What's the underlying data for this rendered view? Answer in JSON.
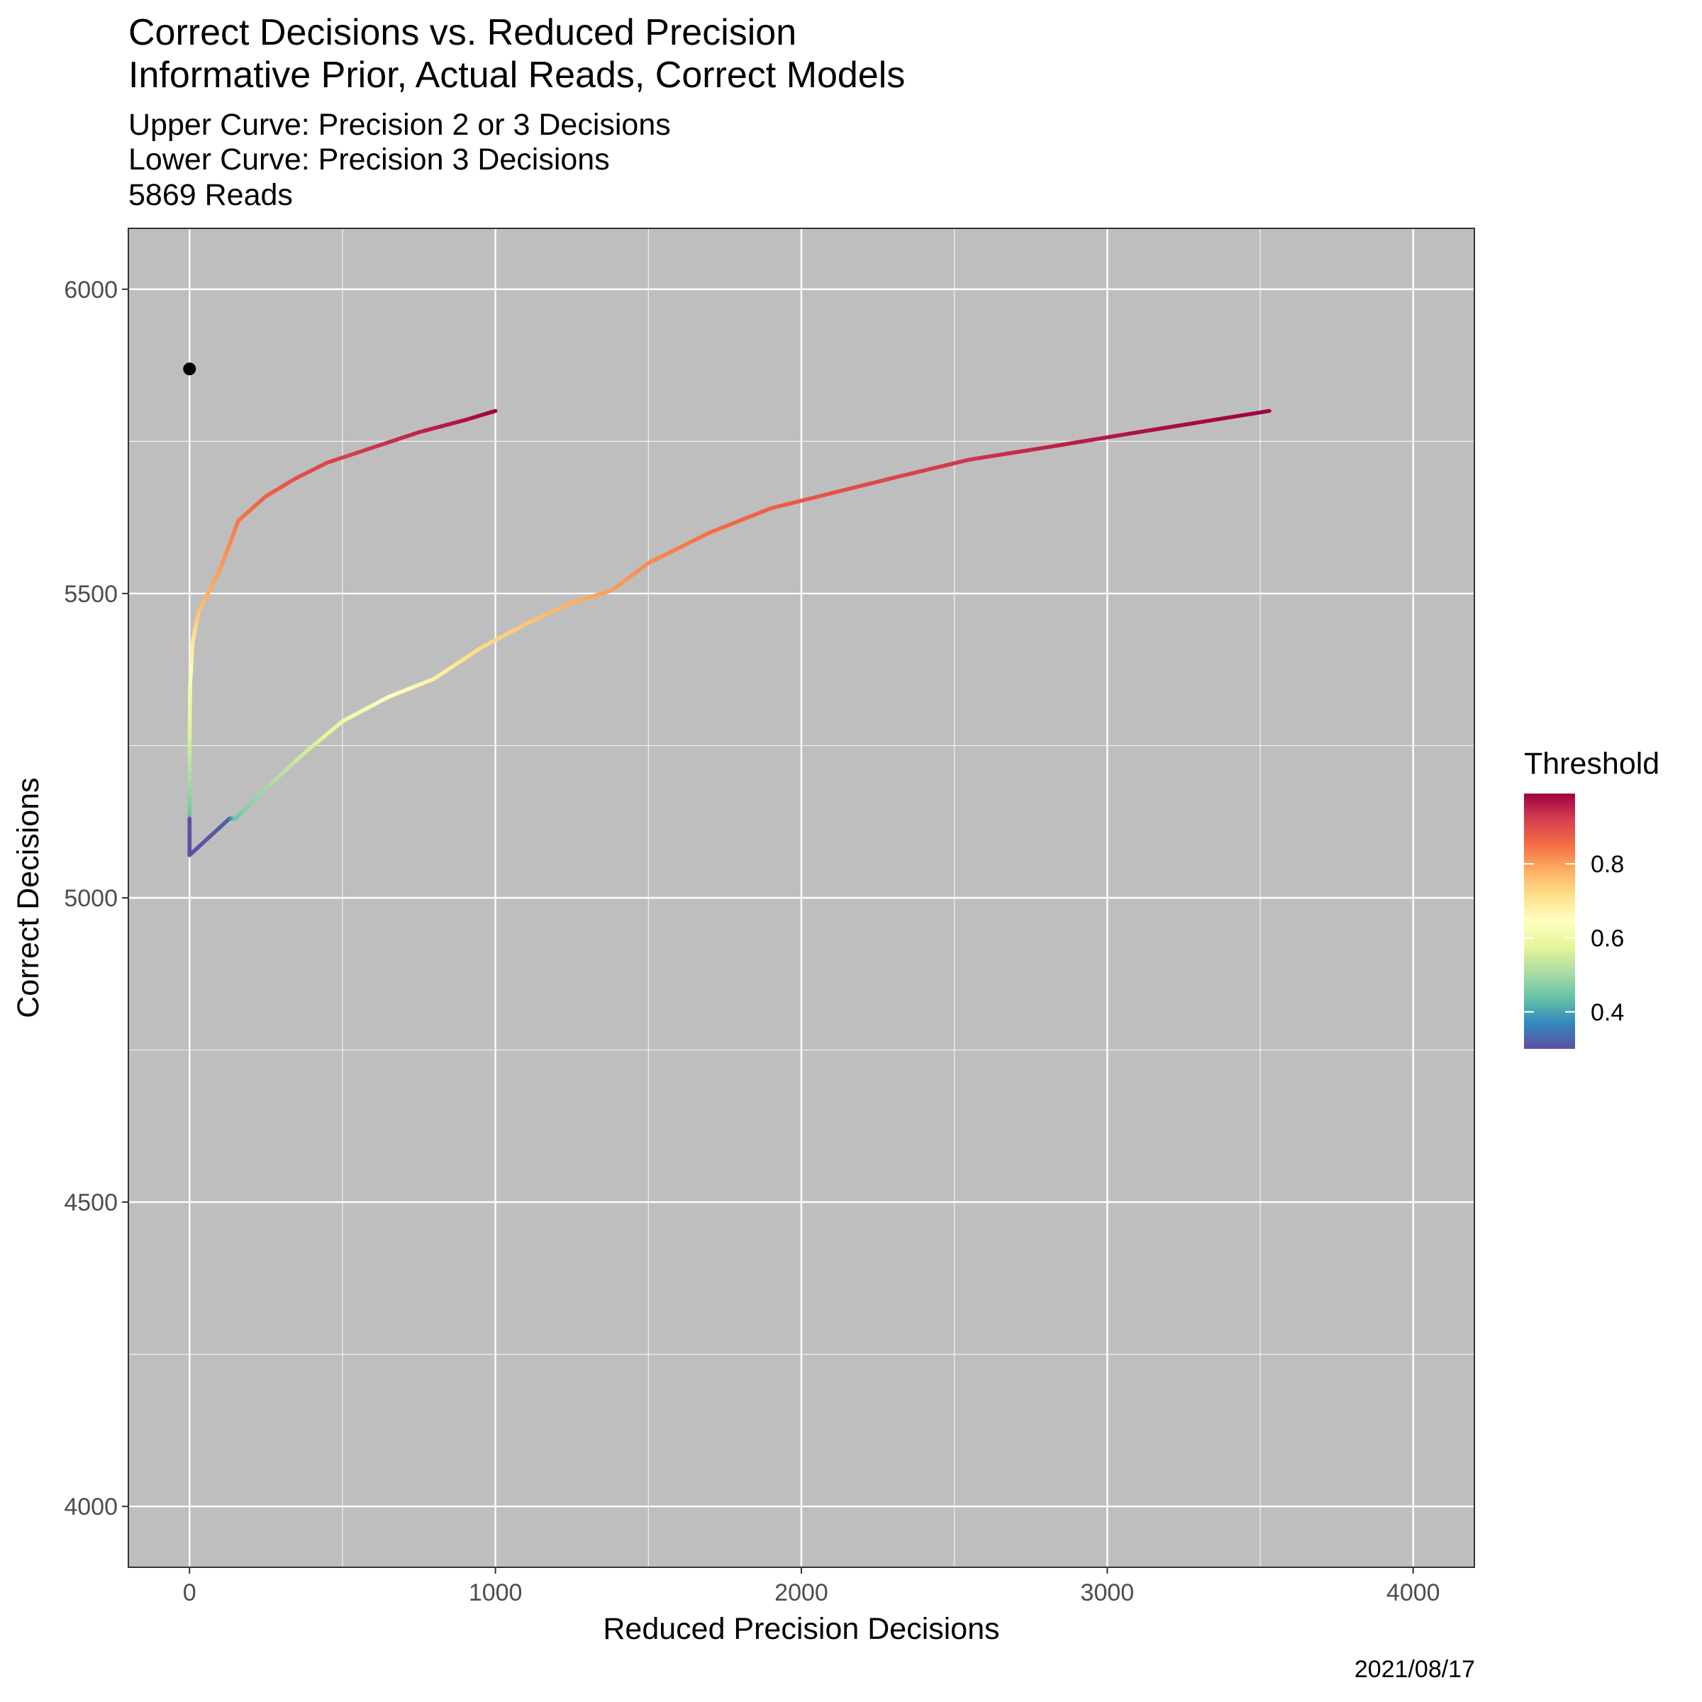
{
  "chart_data": {
    "type": "line",
    "title": "Correct Decisions vs. Reduced Precision",
    "title2": "Informative Prior, Actual Reads, Correct Models",
    "subtitle": [
      "Upper Curve: Precision 2 or 3 Decisions",
      "Lower Curve: Precision 3 Decisions",
      "5869 Reads"
    ],
    "xlabel": "Reduced Precision Decisions",
    "ylabel": "Correct Decisions",
    "caption": "2021/08/17",
    "xlim": [
      -200,
      4200
    ],
    "ylim": [
      3900,
      6100
    ],
    "x_ticks": [
      0,
      1000,
      2000,
      3000,
      4000
    ],
    "y_ticks": [
      4000,
      4500,
      5000,
      5500,
      6000
    ],
    "grid": true,
    "panel_background": "#bebebe",
    "legend": {
      "title": "Threshold",
      "position": "right",
      "range": [
        0.3,
        0.99
      ],
      "breaks": [
        0.4,
        0.6,
        0.8
      ],
      "labels": [
        "0.4",
        "0.6",
        "0.8"
      ],
      "palette": [
        "#5e4fa2",
        "#3288bd",
        "#66c2a5",
        "#abdda4",
        "#e6f598",
        "#ffffbf",
        "#fee08b",
        "#fdae61",
        "#f46d43",
        "#d53e4f",
        "#9e0142"
      ]
    },
    "points": [
      {
        "x": 0,
        "y": 5869,
        "color": "#000000"
      }
    ],
    "series": [
      {
        "name": "Upper Curve",
        "points": [
          {
            "x": 0,
            "y": 5130,
            "t": 0.3
          },
          {
            "x": 0,
            "y": 5070,
            "t": 0.3
          },
          {
            "x": 0,
            "y": 5140,
            "t": 0.45
          },
          {
            "x": 0,
            "y": 5250,
            "t": 0.55
          },
          {
            "x": 2,
            "y": 5350,
            "t": 0.62
          },
          {
            "x": 10,
            "y": 5420,
            "t": 0.7
          },
          {
            "x": 30,
            "y": 5470,
            "t": 0.75
          },
          {
            "x": 60,
            "y": 5500,
            "t": 0.78
          },
          {
            "x": 100,
            "y": 5540,
            "t": 0.8
          },
          {
            "x": 160,
            "y": 5620,
            "t": 0.84
          },
          {
            "x": 250,
            "y": 5660,
            "t": 0.87
          },
          {
            "x": 350,
            "y": 5690,
            "t": 0.89
          },
          {
            "x": 450,
            "y": 5715,
            "t": 0.91
          },
          {
            "x": 600,
            "y": 5740,
            "t": 0.93
          },
          {
            "x": 750,
            "y": 5765,
            "t": 0.95
          },
          {
            "x": 900,
            "y": 5785,
            "t": 0.97
          },
          {
            "x": 1000,
            "y": 5800,
            "t": 0.99
          }
        ]
      },
      {
        "name": "Lower Curve",
        "points": [
          {
            "x": 0,
            "y": 5130,
            "t": 0.3
          },
          {
            "x": 0,
            "y": 5070,
            "t": 0.3
          },
          {
            "x": 130,
            "y": 5130,
            "t": 0.32
          },
          {
            "x": 150,
            "y": 5130,
            "t": 0.45
          },
          {
            "x": 250,
            "y": 5180,
            "t": 0.5
          },
          {
            "x": 380,
            "y": 5240,
            "t": 0.55
          },
          {
            "x": 500,
            "y": 5290,
            "t": 0.6
          },
          {
            "x": 650,
            "y": 5330,
            "t": 0.64
          },
          {
            "x": 800,
            "y": 5360,
            "t": 0.68
          },
          {
            "x": 950,
            "y": 5410,
            "t": 0.72
          },
          {
            "x": 1100,
            "y": 5450,
            "t": 0.75
          },
          {
            "x": 1250,
            "y": 5485,
            "t": 0.78
          },
          {
            "x": 1380,
            "y": 5505,
            "t": 0.8
          },
          {
            "x": 1500,
            "y": 5550,
            "t": 0.82
          },
          {
            "x": 1700,
            "y": 5600,
            "t": 0.85
          },
          {
            "x": 1900,
            "y": 5640,
            "t": 0.87
          },
          {
            "x": 2100,
            "y": 5665,
            "t": 0.89
          },
          {
            "x": 2300,
            "y": 5690,
            "t": 0.91
          },
          {
            "x": 2550,
            "y": 5720,
            "t": 0.93
          },
          {
            "x": 2800,
            "y": 5740,
            "t": 0.95
          },
          {
            "x": 3100,
            "y": 5765,
            "t": 0.97
          },
          {
            "x": 3530,
            "y": 5800,
            "t": 0.99
          }
        ]
      }
    ]
  }
}
